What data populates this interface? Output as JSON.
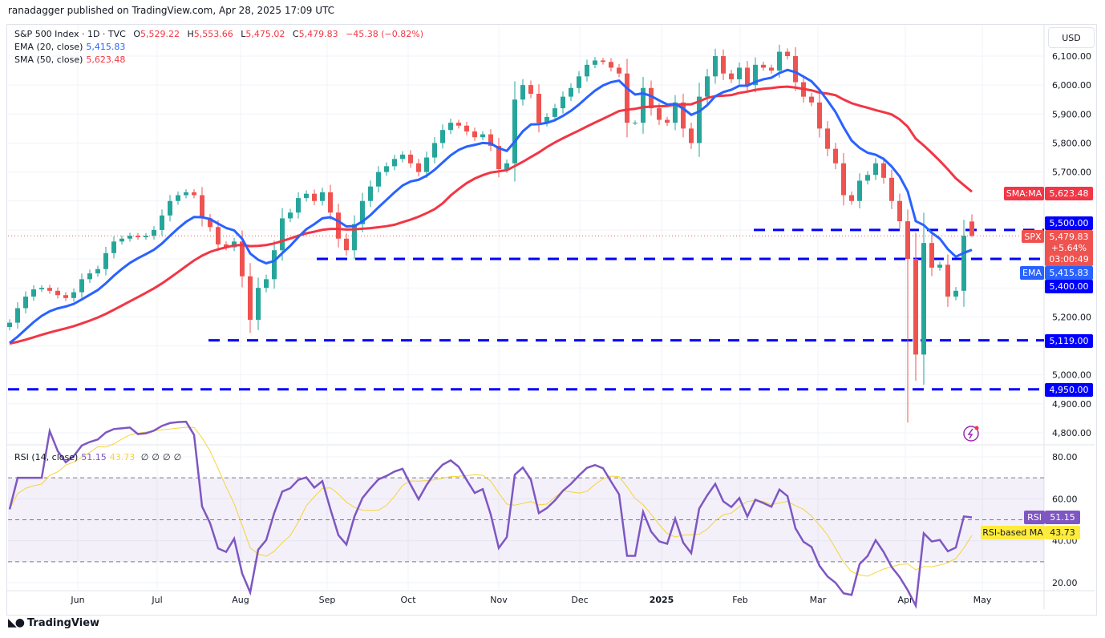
{
  "publish_line": "ranadagger published on TradingView.com, Apr 28, 2025 17:09 UTC",
  "legend": {
    "symbol": "S&P 500 Index · 1D · TVC",
    "open_label": "O",
    "open": "5,529.22",
    "high_label": "H",
    "high": "5,553.66",
    "low_label": "L",
    "low": "5,475.02",
    "close_label": "C",
    "close": "5,479.83",
    "change": "−45.38 (−0.82%)",
    "ema_label": "EMA (20, close)",
    "ema_value": "5,415.83",
    "sma_label": "SMA (50, close)",
    "sma_value": "5,623.48",
    "rsi_label": "RSI (14, close)",
    "rsi_value": "51.15",
    "rsi_ma_value": "43.73",
    "rsi_na": [
      "∅",
      "∅",
      "∅",
      "∅"
    ]
  },
  "currency": "USD",
  "badges": {
    "sma_tag": "SMA:MA",
    "sma_price": "5,623.48",
    "lvl_5500": "5,500.00",
    "spx_tag": "SPX",
    "spx_price": "5,479.83",
    "spx_change": "+5.64%",
    "spx_countdown": "03:00:49",
    "ema_tag": "EMA",
    "ema_price": "5,415.83",
    "lvl_5400": "5,400.00",
    "lvl_5119": "5,119.00",
    "lvl_4950": "4,950.00",
    "rsi_tag": "RSI",
    "rsi_val": "51.15",
    "rsi_ma_tag": "RSI-based MA",
    "rsi_ma_val": "43.73"
  },
  "logo_text": "TradingView",
  "colors": {
    "up": "#26a69a",
    "down": "#ef5350",
    "ema": "#2962ff",
    "sma": "#f23645",
    "levels": "#0000ff",
    "rsi": "#7e57c2",
    "rsi_ma": "#f5d33a"
  },
  "chart_data": [
    {
      "type": "candlestick",
      "title": "S&P 500 Index · 1D · TVC",
      "ylabel": "USD",
      "ylim": [
        4800,
        6150
      ],
      "y_ticks": [
        "6,100.00",
        "6,000.00",
        "5,900.00",
        "5,800.00",
        "5,700.00",
        "5,200.00",
        "5,000.00",
        "4,900.00",
        "4,800.00"
      ],
      "y_tick_values": [
        6100,
        6000,
        5900,
        5800,
        5700,
        5200,
        5000,
        4900,
        4800
      ],
      "x_ticks": [
        "Jun",
        "Jul",
        "Aug",
        "Sep",
        "Oct",
        "Nov",
        "Dec",
        "2025",
        "Feb",
        "Mar",
        "Apr",
        "May"
      ],
      "x_range": [
        "May 2024",
        "Apr 28, 2025"
      ],
      "grid": true,
      "closes_approx_every_2_sessions": [
        5180,
        5230,
        5270,
        5295,
        5300,
        5290,
        5275,
        5265,
        5285,
        5330,
        5350,
        5365,
        5420,
        5460,
        5470,
        5480,
        5475,
        5480,
        5500,
        5550,
        5600,
        5620,
        5630,
        5620,
        5540,
        5510,
        5450,
        5440,
        5460,
        5340,
        5190,
        5300,
        5330,
        5430,
        5540,
        5560,
        5610,
        5625,
        5600,
        5630,
        5560,
        5470,
        5430,
        5520,
        5600,
        5650,
        5700,
        5720,
        5745,
        5760,
        5730,
        5700,
        5750,
        5800,
        5845,
        5870,
        5860,
        5840,
        5820,
        5830,
        5790,
        5710,
        5730,
        5950,
        6000,
        5970,
        5870,
        5890,
        5920,
        5960,
        5990,
        6030,
        6070,
        6085,
        6080,
        6060,
        6040,
        5870,
        5870,
        5990,
        5920,
        5880,
        5870,
        5940,
        5850,
        5800,
        5960,
        6030,
        6100,
        6040,
        6020,
        6060,
        6000,
        6070,
        6060,
        6050,
        6115,
        6100,
        6010,
        5960,
        5940,
        5850,
        5780,
        5730,
        5620,
        5600,
        5670,
        5690,
        5730,
        5680,
        5600,
        5530,
        5400,
        5070,
        5455,
        5370,
        5380,
        5270,
        5290,
        5480,
        5479.83
      ],
      "last_bar": {
        "open": 5529.22,
        "high": 5553.66,
        "low": 5475.02,
        "close": 5479.83
      },
      "april_low": 4835,
      "levels": [
        5500,
        5400,
        5119,
        4950
      ],
      "series": [
        {
          "name": "EMA (20, close)",
          "last": 5415.83
        },
        {
          "name": "SMA (50, close)",
          "last": 5623.48
        }
      ]
    },
    {
      "type": "line",
      "title": "RSI (14, close)",
      "ylim": [
        15,
        85
      ],
      "y_ticks": [
        "80.00",
        "60.00",
        "40.00",
        "20.00"
      ],
      "y_tick_values": [
        80,
        60,
        40,
        20
      ],
      "band": [
        30,
        70
      ],
      "midline": 50,
      "series": [
        {
          "name": "RSI",
          "last": 51.15
        },
        {
          "name": "RSI-based MA",
          "last": 43.73
        }
      ]
    }
  ]
}
